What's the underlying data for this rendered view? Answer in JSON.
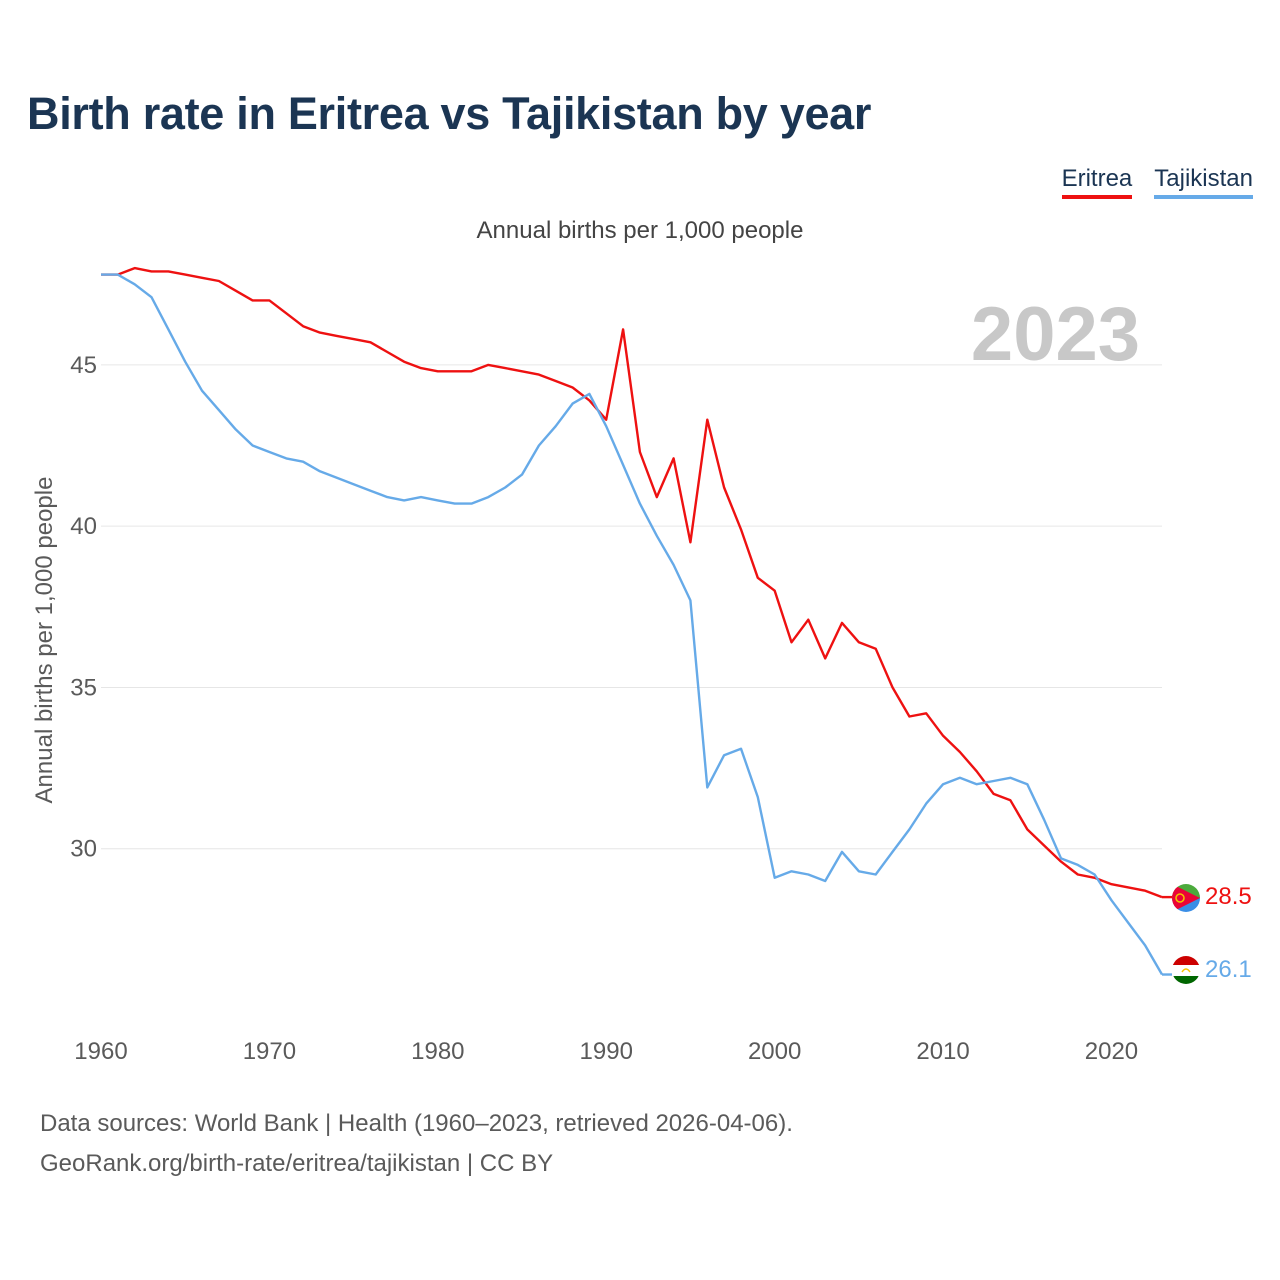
{
  "title": "Birth rate in Eritrea vs Tajikistan by year",
  "subtitle": "Annual births per 1,000 people",
  "legend": [
    {
      "name": "Eritrea",
      "color": "#ee1111"
    },
    {
      "name": "Tajikistan",
      "color": "#66aae8"
    }
  ],
  "footer": {
    "line1": "Data sources: World Bank | Health (1960–2023, retrieved 2026-04-06).",
    "line2": "GeoRank.org/birth-rate/eritrea/tajikistan | CC BY"
  },
  "chart_data": {
    "type": "line",
    "title": "Birth rate in Eritrea vs Tajikistan by year",
    "ylabel": "Annual births per 1,000 people",
    "xlabel": "",
    "year_label": "2023",
    "xlim": [
      1960,
      2023
    ],
    "ylim": [
      25,
      48.5
    ],
    "x_ticks": [
      1960,
      1970,
      1980,
      1990,
      2000,
      2010,
      2020
    ],
    "y_ticks": [
      30,
      35,
      40,
      45
    ],
    "grid": true,
    "x": [
      1960,
      1961,
      1962,
      1963,
      1964,
      1965,
      1966,
      1967,
      1968,
      1969,
      1970,
      1971,
      1972,
      1973,
      1974,
      1975,
      1976,
      1977,
      1978,
      1979,
      1980,
      1981,
      1982,
      1983,
      1984,
      1985,
      1986,
      1987,
      1988,
      1989,
      1990,
      1991,
      1992,
      1993,
      1994,
      1995,
      1996,
      1997,
      1998,
      1999,
      2000,
      2001,
      2002,
      2003,
      2004,
      2005,
      2006,
      2007,
      2008,
      2009,
      2010,
      2011,
      2012,
      2013,
      2014,
      2015,
      2016,
      2017,
      2018,
      2019,
      2020,
      2021,
      2022,
      2023
    ],
    "series": [
      {
        "name": "Eritrea",
        "color": "#ee1111",
        "end_label": "28.5",
        "values": [
          47.8,
          47.8,
          48.0,
          47.9,
          47.9,
          47.8,
          47.7,
          47.6,
          47.3,
          47.0,
          47.0,
          46.6,
          46.2,
          46.0,
          45.9,
          45.8,
          45.7,
          45.4,
          45.1,
          44.9,
          44.8,
          44.8,
          44.8,
          45.0,
          44.9,
          44.8,
          44.7,
          44.5,
          44.3,
          43.9,
          43.3,
          46.1,
          42.3,
          40.9,
          42.1,
          39.5,
          43.3,
          41.2,
          39.9,
          38.4,
          38.0,
          36.4,
          37.1,
          35.9,
          37.0,
          36.4,
          36.2,
          35.0,
          34.1,
          34.2,
          33.5,
          33.0,
          32.4,
          31.7,
          31.5,
          30.6,
          30.1,
          29.6,
          29.2,
          29.1,
          28.9,
          28.8,
          28.7,
          28.5
        ]
      },
      {
        "name": "Tajikistan",
        "color": "#66aae8",
        "end_label": "26.1",
        "values": [
          47.8,
          47.8,
          47.5,
          47.1,
          46.1,
          45.1,
          44.2,
          43.6,
          43.0,
          42.5,
          42.3,
          42.1,
          42.0,
          41.7,
          41.5,
          41.3,
          41.1,
          40.9,
          40.8,
          40.9,
          40.8,
          40.7,
          40.7,
          40.9,
          41.2,
          41.6,
          42.5,
          43.1,
          43.8,
          44.1,
          43.1,
          41.9,
          40.7,
          39.7,
          38.8,
          37.7,
          31.9,
          32.9,
          33.1,
          31.6,
          29.1,
          29.3,
          29.2,
          29.0,
          29.9,
          29.3,
          29.2,
          29.9,
          30.6,
          31.4,
          32.0,
          32.2,
          32.0,
          32.1,
          32.2,
          32.0,
          30.9,
          29.7,
          29.5,
          29.2,
          28.4,
          27.7,
          27.0,
          26.1
        ]
      }
    ]
  }
}
